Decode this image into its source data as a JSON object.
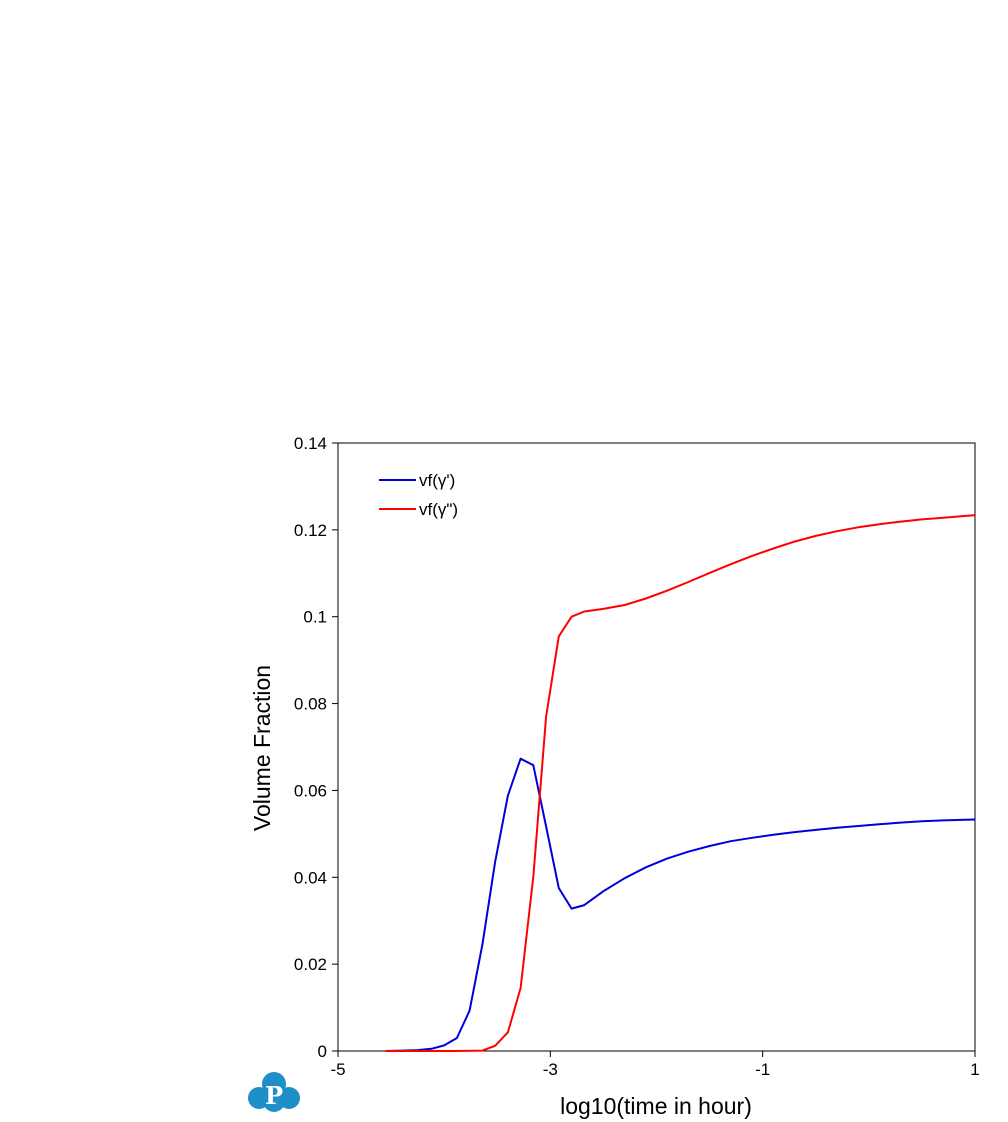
{
  "chart_data": {
    "type": "line",
    "title": "",
    "xlabel": "log10(time in hour)",
    "ylabel": "Volume Fraction",
    "xlim": [
      -5,
      1
    ],
    "ylim": [
      0,
      0.14
    ],
    "x_ticks": [
      -5,
      -3,
      -1,
      1
    ],
    "x_tick_labels": [
      "-5",
      "-3",
      "-1",
      "1"
    ],
    "y_ticks": [
      0,
      0.02,
      0.04,
      0.06,
      0.08,
      0.1,
      0.12,
      0.14
    ],
    "y_tick_labels": [
      "0",
      "0.02",
      "0.04",
      "0.06",
      "0.08",
      "0.1",
      "0.12",
      "0.14"
    ],
    "grid": false,
    "legend_position": "top-left",
    "series": [
      {
        "name": "vf(γ')",
        "color": "#0000dd",
        "points": [
          [
            -4.55,
            0.0
          ],
          [
            -4.4,
            0.0001
          ],
          [
            -4.25,
            0.0002
          ],
          [
            -4.12,
            0.0005
          ],
          [
            -4.0,
            0.0013
          ],
          [
            -3.88,
            0.003
          ],
          [
            -3.76,
            0.0093
          ],
          [
            -3.64,
            0.0245
          ],
          [
            -3.52,
            0.0435
          ],
          [
            -3.4,
            0.0588
          ],
          [
            -3.28,
            0.0673
          ],
          [
            -3.16,
            0.0658
          ],
          [
            -3.04,
            0.0517
          ],
          [
            -2.92,
            0.0375
          ],
          [
            -2.8,
            0.0328
          ],
          [
            -2.68,
            0.0336
          ],
          [
            -2.5,
            0.0368
          ],
          [
            -2.3,
            0.0398
          ],
          [
            -2.1,
            0.0423
          ],
          [
            -1.9,
            0.0443
          ],
          [
            -1.7,
            0.0459
          ],
          [
            -1.5,
            0.0472
          ],
          [
            -1.3,
            0.0483
          ],
          [
            -1.1,
            0.0491
          ],
          [
            -0.9,
            0.0498
          ],
          [
            -0.7,
            0.0504
          ],
          [
            -0.5,
            0.0509
          ],
          [
            -0.3,
            0.0514
          ],
          [
            -0.1,
            0.0518
          ],
          [
            0.1,
            0.0522
          ],
          [
            0.3,
            0.0526
          ],
          [
            0.5,
            0.0529
          ],
          [
            0.7,
            0.0531
          ],
          [
            1.0,
            0.0533
          ]
        ]
      },
      {
        "name": "vf(γ\")",
        "color": "#ff0000",
        "points": [
          [
            -4.55,
            0.0
          ],
          [
            -4.2,
            0.0
          ],
          [
            -3.9,
            0.0
          ],
          [
            -3.64,
            0.0001
          ],
          [
            -3.52,
            0.0012
          ],
          [
            -3.4,
            0.0043
          ],
          [
            -3.28,
            0.0145
          ],
          [
            -3.16,
            0.0401
          ],
          [
            -3.04,
            0.077
          ],
          [
            -2.92,
            0.0955
          ],
          [
            -2.8,
            0.1
          ],
          [
            -2.68,
            0.1012
          ],
          [
            -2.5,
            0.1018
          ],
          [
            -2.3,
            0.1027
          ],
          [
            -2.1,
            0.1042
          ],
          [
            -1.9,
            0.106
          ],
          [
            -1.7,
            0.108
          ],
          [
            -1.5,
            0.1101
          ],
          [
            -1.3,
            0.1121
          ],
          [
            -1.1,
            0.114
          ],
          [
            -0.9,
            0.1157
          ],
          [
            -0.7,
            0.1173
          ],
          [
            -0.5,
            0.1186
          ],
          [
            -0.3,
            0.1197
          ],
          [
            -0.1,
            0.1206
          ],
          [
            0.1,
            0.1213
          ],
          [
            0.3,
            0.1219
          ],
          [
            0.5,
            0.1224
          ],
          [
            0.7,
            0.1228
          ],
          [
            1.0,
            0.1234
          ]
        ]
      }
    ]
  },
  "colors": {
    "axis": "#000000",
    "logo": "#1f8fc8"
  },
  "logo": {
    "icon": "company-logo-icon",
    "letter": "P"
  }
}
